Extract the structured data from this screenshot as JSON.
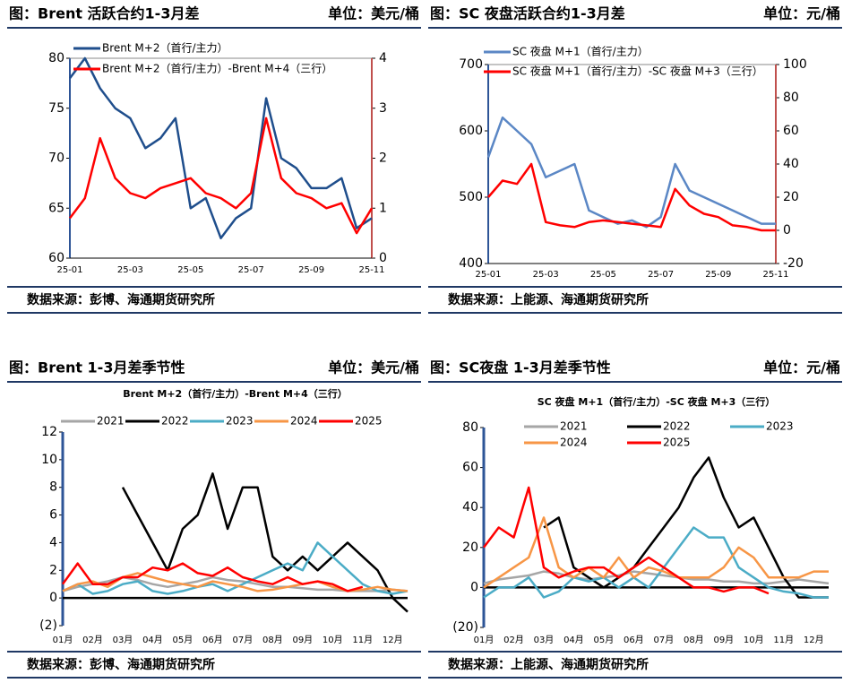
{
  "chart_data": [
    {
      "type": "line",
      "title": "图：Brent 活跃合约1-3月差",
      "unit": "单位：美元/桶",
      "source": "数据来源：彭博、海通期货研究所",
      "legend": "upper left",
      "categories": [
        "25-01",
        null,
        null,
        null,
        "25-03",
        null,
        null,
        null,
        "25-05",
        null,
        null,
        null,
        "25-07",
        null,
        null,
        null,
        "25-09",
        null,
        null,
        null,
        "25-11"
      ],
      "series": [
        {
          "name": "Brent M+2（首行/主力）",
          "color": "#1f4e8c",
          "values": [
            78,
            80,
            77,
            75,
            74,
            71,
            72,
            74,
            65,
            66,
            62,
            64,
            65,
            76,
            70,
            69,
            67,
            67,
            68,
            63,
            64
          ]
        },
        {
          "name": "Brent M+2（首行/主力）-Brent M+4（三行）",
          "color": "#ff0000",
          "axis": "y2",
          "values": [
            0.8,
            1.2,
            2.4,
            1.6,
            1.3,
            1.2,
            1.4,
            1.5,
            1.6,
            1.3,
            1.2,
            1.0,
            1.3,
            2.8,
            1.6,
            1.3,
            1.2,
            1.0,
            1.1,
            0.5,
            1.0
          ]
        }
      ],
      "ylim": [
        60,
        80
      ],
      "yticks": [
        60,
        65,
        70,
        75,
        80
      ],
      "y2lim": [
        0,
        4
      ],
      "y2ticks": [
        0,
        1,
        2,
        3,
        4
      ]
    },
    {
      "type": "line",
      "title": "图：SC 夜盘活跃合约1-3月差",
      "unit": "单位：元/桶",
      "source": "数据来源：上能源、海通期货研究所",
      "legend": "upper left",
      "categories": [
        "25-01",
        null,
        null,
        null,
        "25-03",
        null,
        null,
        null,
        "25-05",
        null,
        null,
        null,
        "25-07",
        null,
        null,
        null,
        "25-09",
        null,
        null,
        null,
        "25-11"
      ],
      "series": [
        {
          "name": "SC 夜盘 M+1（首行/主力）",
          "color": "#5b87c5",
          "values": [
            560,
            620,
            600,
            580,
            530,
            540,
            550,
            480,
            470,
            460,
            465,
            455,
            470,
            550,
            510,
            500,
            490,
            480,
            470,
            460,
            460
          ]
        },
        {
          "name": "SC 夜盘 M+1（首行/主力）-SC 夜盘 M+3（三行）",
          "color": "#ff0000",
          "axis": "y2",
          "values": [
            20,
            30,
            28,
            40,
            5,
            3,
            2,
            5,
            6,
            5,
            4,
            3,
            2,
            25,
            15,
            10,
            8,
            3,
            2,
            0,
            0
          ]
        }
      ],
      "ylim": [
        400,
        700
      ],
      "yticks": [
        400,
        500,
        600,
        700
      ],
      "y2lim": [
        -20,
        100
      ],
      "y2ticks": [
        -20,
        0,
        20,
        40,
        60,
        80,
        100
      ]
    },
    {
      "type": "line",
      "title": "图：Brent 1-3月差季节性",
      "unit": "单位：美元/桶",
      "subtitle": "Brent M+2（首行/主力）-Brent M+4（三行）",
      "source": "数据来源：彭博、海通期货研究所",
      "legend": "top",
      "categories": [
        "01月",
        null,
        "02月",
        null,
        "03月",
        null,
        "04月",
        null,
        "05月",
        null,
        "06月",
        null,
        "07月",
        null,
        "08月",
        null,
        "09月",
        null,
        "10月",
        null,
        "11月",
        null,
        "12月",
        null
      ],
      "series": [
        {
          "name": "2021",
          "color": "#a6a6a6",
          "values": [
            0.5,
            0.8,
            1,
            1.2,
            1.5,
            1.3,
            1,
            0.8,
            1,
            1.2,
            1.5,
            1.3,
            1.2,
            1,
            0.8,
            0.8,
            0.7,
            0.6,
            0.6,
            0.5,
            0.5,
            0.5,
            0.6,
            0.5
          ]
        },
        {
          "name": "2022",
          "color": "#000000",
          "values": [
            null,
            null,
            null,
            null,
            8,
            6,
            4,
            2,
            5,
            6,
            9,
            5,
            8,
            8,
            3,
            2,
            3,
            2,
            3,
            4,
            3,
            2,
            0,
            -1
          ]
        },
        {
          "name": "2023",
          "color": "#4bacc6",
          "values": [
            0.5,
            1,
            0.3,
            0.5,
            1,
            1.2,
            0.5,
            0.3,
            0.5,
            0.8,
            1,
            0.5,
            1,
            1.5,
            2,
            2.5,
            2,
            4,
            3,
            2,
            1,
            0.5,
            0.3,
            0.5
          ]
        },
        {
          "name": "2024",
          "color": "#f79646",
          "values": [
            0.5,
            1,
            1.2,
            0.8,
            1.5,
            1.8,
            1.5,
            1.2,
            1,
            0.8,
            1.2,
            1,
            0.8,
            0.5,
            0.6,
            0.8,
            1,
            1.2,
            0.8,
            0.5,
            0.6,
            0.8,
            0.6,
            0.5
          ]
        },
        {
          "name": "2025",
          "color": "#ff0000",
          "values": [
            1,
            2.5,
            1,
            1,
            1.5,
            1.5,
            2.2,
            2,
            2.5,
            1.8,
            1.6,
            2.2,
            1.5,
            1.2,
            1,
            1.5,
            1,
            1.2,
            1,
            0.5,
            0.8,
            null,
            null,
            null
          ]
        }
      ],
      "ylim": [
        -2,
        12
      ],
      "yticks": [
        {
          "value": -2,
          "label": "(2)"
        },
        0,
        2,
        4,
        6,
        8,
        10,
        12
      ]
    },
    {
      "type": "line",
      "title": "图：SC夜盘 1-3月差季节性",
      "unit": "单位：元/桶",
      "subtitle": "SC 夜盘 M+1（首行/主力）-SC 夜盘 M+3（三行）",
      "source": "数据来源：上能源、海通期货研究所",
      "legend": "top",
      "categories": [
        "01月",
        null,
        "02月",
        null,
        "03月",
        null,
        "04月",
        null,
        "05月",
        null,
        "06月",
        null,
        "07月",
        null,
        "08月",
        null,
        "09月",
        null,
        "10月",
        null,
        "11月",
        null,
        "12月",
        null
      ],
      "series": [
        {
          "name": "2021",
          "color": "#a6a6a6",
          "values": [
            2,
            4,
            5,
            6,
            8,
            7,
            5,
            4,
            5,
            6,
            8,
            7,
            6,
            5,
            4,
            4,
            3,
            3,
            2,
            2,
            3,
            4,
            3,
            2
          ]
        },
        {
          "name": "2022",
          "color": "#000000",
          "values": [
            null,
            null,
            null,
            null,
            30,
            35,
            10,
            5,
            0,
            5,
            10,
            20,
            30,
            40,
            55,
            65,
            45,
            30,
            35,
            20,
            5,
            -5,
            -5,
            -5
          ]
        },
        {
          "name": "2023",
          "color": "#4bacc6",
          "values": [
            -5,
            0,
            0,
            5,
            -5,
            -2,
            5,
            3,
            5,
            0,
            5,
            0,
            10,
            20,
            30,
            25,
            25,
            10,
            5,
            0,
            -2,
            -3,
            -5,
            -5
          ]
        },
        {
          "name": "2024",
          "color": "#f79646",
          "values": [
            0,
            5,
            10,
            15,
            35,
            10,
            5,
            10,
            5,
            15,
            5,
            10,
            8,
            5,
            5,
            5,
            10,
            20,
            15,
            5,
            5,
            5,
            8,
            8
          ]
        },
        {
          "name": "2025",
          "color": "#ff0000",
          "values": [
            20,
            30,
            25,
            50,
            10,
            5,
            8,
            10,
            10,
            5,
            10,
            15,
            10,
            5,
            0,
            0,
            -2,
            0,
            0,
            -3,
            null,
            null,
            null,
            null
          ]
        }
      ],
      "ylim": [
        -20,
        80
      ],
      "yticks": [
        {
          "value": -20,
          "label": "(20)"
        },
        0,
        20,
        40,
        60,
        80
      ]
    }
  ]
}
